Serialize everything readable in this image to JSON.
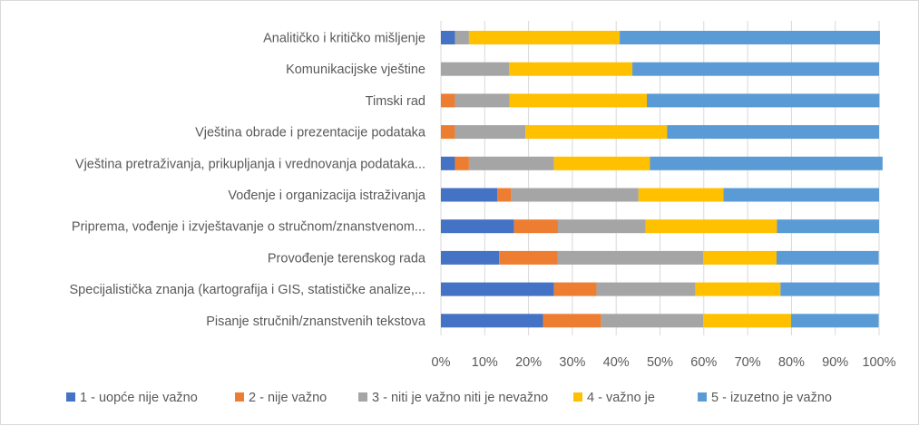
{
  "chart_data": {
    "type": "bar",
    "orientation": "horizontal",
    "stacked": "percent",
    "categories": [
      "Analitičko i kritičko mišljenje",
      "Komunikacijske vještine",
      "Timski rad",
      "Vještina obrade i prezentacije podataka",
      "Vještina pretraživanja, prikupljanja i vrednovanja podataka...",
      "Vođenje i organizacija istraživanja",
      "Priprema, vođenje i izvještavanje o stručnom/znanstvenom...",
      "Provođenje terenskog rada",
      "Specijalistička znanja (kartografija i GIS, statističke analize,...",
      "Pisanje stručnih/znanstvenih tekstova"
    ],
    "series": [
      {
        "name": "1 - uopće nije važno",
        "color": "#4472c4",
        "values": [
          3.2,
          0,
          0,
          0,
          3.2,
          12.9,
          16.7,
          13.3,
          25.8,
          23.3
        ]
      },
      {
        "name": "2 - nije važno",
        "color": "#ed7d31",
        "values": [
          0,
          0,
          3.2,
          3.2,
          3.2,
          3.2,
          10.0,
          13.3,
          9.7,
          13.3
        ]
      },
      {
        "name": "3 - niti je važno niti je nevažno",
        "color": "#a5a5a5",
        "values": [
          3.2,
          15.6,
          12.5,
          16.1,
          19.4,
          29.0,
          20.0,
          33.3,
          22.6,
          23.3
        ]
      },
      {
        "name": "4 - važno je",
        "color": "#ffc000",
        "values": [
          34.4,
          28.1,
          31.3,
          32.3,
          21.9,
          19.4,
          30.0,
          16.7,
          19.4,
          20.0
        ]
      },
      {
        "name": "5 - izuzetno je važno",
        "color": "#5b9bd5",
        "values": [
          59.4,
          56.3,
          53.1,
          48.4,
          53.1,
          35.5,
          23.3,
          23.3,
          22.6,
          20.0
        ]
      }
    ],
    "xticks": [
      "0%",
      "10%",
      "20%",
      "30%",
      "40%",
      "50%",
      "60%",
      "70%",
      "80%",
      "90%",
      "100%"
    ],
    "xlim": [
      0,
      100
    ],
    "grid": true,
    "legend_position": "bottom"
  }
}
